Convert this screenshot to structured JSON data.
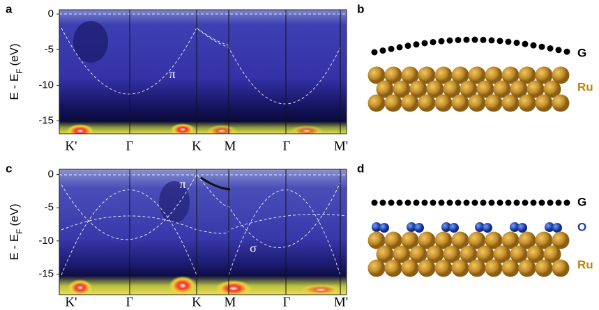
{
  "figure": {
    "panels": [
      {
        "label": "a",
        "ylabel": {
          "main": "E - E",
          "sub": "F",
          "unit": "(eV)"
        },
        "ylim": [
          -16.8,
          0.6
        ],
        "yticks": [
          0,
          -5,
          -10,
          -15
        ],
        "xlabels": [
          "K'",
          "Γ",
          "K",
          "M",
          "Γ",
          "M'"
        ],
        "annotations": [
          "π"
        ]
      },
      {
        "label": "b",
        "labels": [
          "G",
          "Ru"
        ]
      },
      {
        "label": "c",
        "ylabel": {
          "main": "E - E",
          "sub": "F",
          "unit": "(eV)"
        },
        "ylim": [
          -18.1,
          0.8
        ],
        "yticks": [
          0,
          -5,
          -10,
          -15
        ],
        "xlabels": [
          "K'",
          "Γ",
          "K",
          "M",
          "Γ",
          "M'"
        ],
        "annotations": [
          "π",
          "σ"
        ]
      },
      {
        "label": "d",
        "labels": [
          "G",
          "O",
          "Ru"
        ]
      }
    ]
  }
}
